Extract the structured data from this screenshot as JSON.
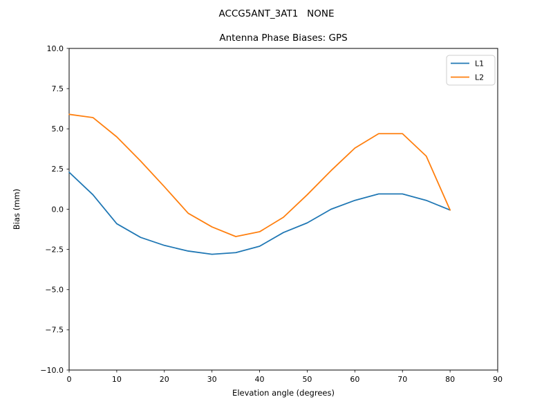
{
  "figure": {
    "suptitle": "ACCG5ANT_3AT1   NONE"
  },
  "chart_data": {
    "type": "line",
    "title": "Antenna Phase Biases: GPS",
    "xlabel": "Elevation angle (degrees)",
    "ylabel": "Bias (mm)",
    "xlim": [
      0,
      90
    ],
    "ylim": [
      -10,
      10
    ],
    "grid": false,
    "legend_position": "upper right",
    "x": [
      0,
      5,
      10,
      15,
      20,
      25,
      30,
      35,
      40,
      45,
      50,
      55,
      60,
      65,
      70,
      75,
      80
    ],
    "series": [
      {
        "name": "L1",
        "color": "#1f77b4",
        "values": [
          2.3,
          0.9,
          -0.9,
          -1.75,
          -2.25,
          -2.6,
          -2.8,
          -2.7,
          -2.3,
          -1.45,
          -0.85,
          0.0,
          0.55,
          0.95,
          0.95,
          0.55,
          -0.05
        ]
      },
      {
        "name": "L2",
        "color": "#ff7f0e",
        "values": [
          5.9,
          5.7,
          4.5,
          3.0,
          1.4,
          -0.25,
          -1.1,
          -1.7,
          -1.4,
          -0.5,
          0.9,
          2.4,
          3.8,
          4.7,
          4.7,
          3.3,
          -0.05
        ]
      }
    ],
    "xticks": {
      "values": [
        0,
        10,
        20,
        30,
        40,
        50,
        60,
        70,
        80,
        90
      ],
      "labels": [
        "0",
        "10",
        "20",
        "30",
        "40",
        "50",
        "60",
        "70",
        "80",
        "90"
      ]
    },
    "yticks": {
      "values": [
        -10,
        -7.5,
        -5,
        -2.5,
        0,
        2.5,
        5,
        7.5,
        10
      ],
      "labels": [
        "−10.0",
        "−7.5",
        "−5.0",
        "−2.5",
        "0.0",
        "2.5",
        "5.0",
        "7.5",
        "10.0"
      ]
    }
  },
  "colors": {
    "axis": "#000000",
    "legend_border": "#cccccc",
    "background": "#ffffff"
  }
}
